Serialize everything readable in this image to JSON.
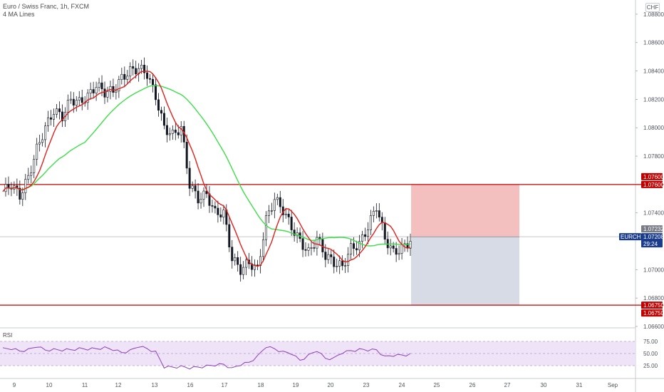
{
  "legend": {
    "symbol_line": "Euro / Swiss Franc, 1h, FXCM",
    "ma_line": "4 MA Lines"
  },
  "currency_button": "CHF",
  "rsi": {
    "title": "RSI",
    "levels": [
      "75.00",
      "50.00",
      "25.00"
    ]
  },
  "price_axis": {
    "ticks": [
      "1.08800",
      "1.08600",
      "1.08400",
      "1.08200",
      "1.08000",
      "1.07800",
      "1.07400",
      "1.07000",
      "1.06800",
      "1.06600"
    ]
  },
  "time_axis": {
    "ticks": [
      "9",
      "10",
      "11",
      "12",
      "13",
      "16",
      "17",
      "18",
      "19",
      "20",
      "23",
      "24",
      "25",
      "26",
      "27",
      "30",
      "31",
      "Sep"
    ]
  },
  "price_tags": {
    "upper_level_1": "1.07600",
    "upper_level_2": "1.07600",
    "current_price": "1.07232",
    "symbol": "EURCHF",
    "symbol_price": "1.07208",
    "countdown": "29:24",
    "lower_level_1": "1.06750",
    "lower_level_2": "1.06750"
  },
  "colors": {
    "red_level": "#c30000",
    "ma_red": "#e0201b",
    "ma_green": "#3dde4a",
    "stop_zone": "#f2b8b8",
    "target_zone": "#d3d7e3",
    "rsi_line": "#8e3fb6",
    "rsi_band": "#efe3f7",
    "candle": "#131722",
    "symbol_tag": "#1a3c8c"
  },
  "chart_data": {
    "type": "line",
    "title": "Euro / Swiss Franc, 1h, FXCM",
    "ylim": [
      1.066,
      1.089
    ],
    "horizontal_levels": [
      1.076,
      1.0675
    ],
    "current_price": 1.07232,
    "position": {
      "entry": 1.0723,
      "stop": 1.076,
      "target": 1.0675
    },
    "series": [
      {
        "name": "price",
        "values": [
          1.0755,
          1.076,
          1.0752,
          1.0765,
          1.0785,
          1.08,
          1.0812,
          1.0808,
          1.082,
          1.0818,
          1.0822,
          1.083,
          1.0825,
          1.0826,
          1.0835,
          1.084,
          1.0842,
          1.0838,
          1.0822,
          1.08,
          1.0795,
          1.08,
          1.076,
          1.075,
          1.0753,
          1.074,
          1.074,
          1.0708,
          1.07,
          1.0705,
          1.07,
          1.0735,
          1.075,
          1.0742,
          1.073,
          1.072,
          1.0712,
          1.0722,
          1.071,
          1.0705,
          1.0702,
          1.0715,
          1.0718,
          1.073,
          1.0745,
          1.0722,
          1.0712,
          1.0715,
          1.072
        ]
      }
    ],
    "rsi_ylim": [
      0,
      100
    ],
    "rsi_values": [
      62,
      58,
      55,
      60,
      63,
      57,
      60,
      55,
      58,
      62,
      57,
      60,
      64,
      56,
      52,
      58,
      63,
      60,
      55,
      20,
      22,
      25,
      18,
      22,
      26,
      24,
      28,
      21,
      25,
      32,
      46,
      62,
      60,
      55,
      48,
      36,
      48,
      54,
      40,
      42,
      50,
      56,
      60,
      55,
      58,
      45,
      44,
      47,
      50
    ]
  }
}
